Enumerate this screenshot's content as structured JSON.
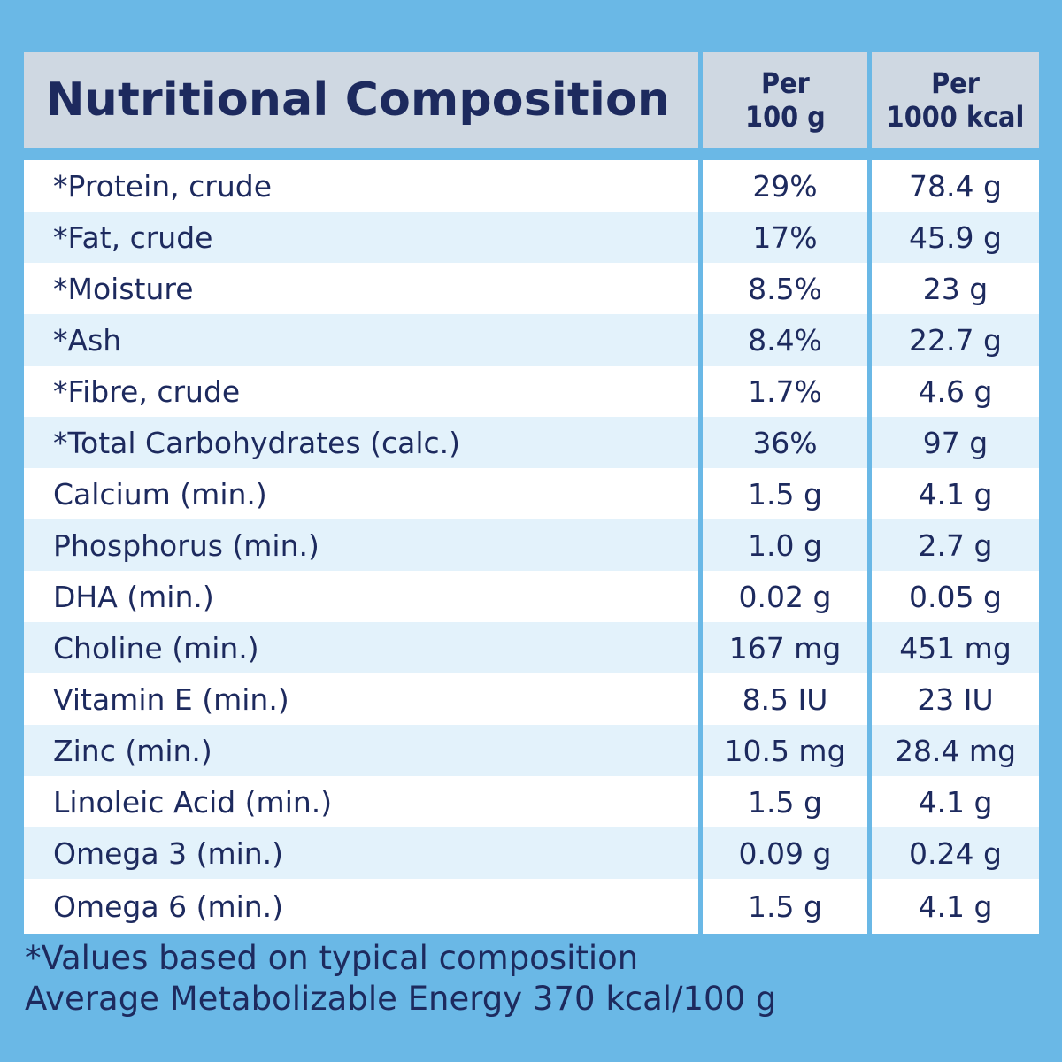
{
  "header": {
    "title": "Nutritional Composition",
    "col1_line1": "Per",
    "col1_line2": "100 g",
    "col2_line1": "Per",
    "col2_line2": "1000 kcal"
  },
  "rows": [
    {
      "name": "*Protein, crude",
      "per100g": "29%",
      "per1000kcal": "78.4 g"
    },
    {
      "name": "*Fat, crude",
      "per100g": "17%",
      "per1000kcal": "45.9 g"
    },
    {
      "name": "*Moisture",
      "per100g": "8.5%",
      "per1000kcal": "23 g"
    },
    {
      "name": "*Ash",
      "per100g": "8.4%",
      "per1000kcal": "22.7 g"
    },
    {
      "name": "*Fibre, crude",
      "per100g": "1.7%",
      "per1000kcal": "4.6 g"
    },
    {
      "name": "*Total Carbohydrates (calc.)",
      "per100g": "36%",
      "per1000kcal": "97 g"
    },
    {
      "name": "Calcium (min.)",
      "per100g": "1.5 g",
      "per1000kcal": "4.1 g"
    },
    {
      "name": "Phosphorus (min.)",
      "per100g": "1.0 g",
      "per1000kcal": "2.7 g"
    },
    {
      "name": "DHA (min.)",
      "per100g": "0.02 g",
      "per1000kcal": "0.05 g"
    },
    {
      "name": "Choline (min.)",
      "per100g": "167 mg",
      "per1000kcal": "451 mg"
    },
    {
      "name": "Vitamin E (min.)",
      "per100g": "8.5 IU",
      "per1000kcal": "23 IU"
    },
    {
      "name": "Zinc (min.)",
      "per100g": "10.5 mg",
      "per1000kcal": "28.4 mg"
    },
    {
      "name": "Linoleic Acid (min.)",
      "per100g": "1.5 g",
      "per1000kcal": "4.1 g"
    },
    {
      "name": "Omega 3 (min.)",
      "per100g": "0.09 g",
      "per1000kcal": "0.24 g"
    },
    {
      "name": "Omega 6 (min.)",
      "per100g": "1.5 g",
      "per1000kcal": "4.1 g"
    }
  ],
  "footnote": {
    "line1": "*Values based on typical composition",
    "line2": "Average Metabolizable Energy 370 kcal/100 g"
  },
  "colors": {
    "background": "#6ab8e6",
    "header_bg": "#cfd8e2",
    "row_white": "#ffffff",
    "row_tint": "#e3f2fb",
    "text": "#1d2a5e"
  }
}
